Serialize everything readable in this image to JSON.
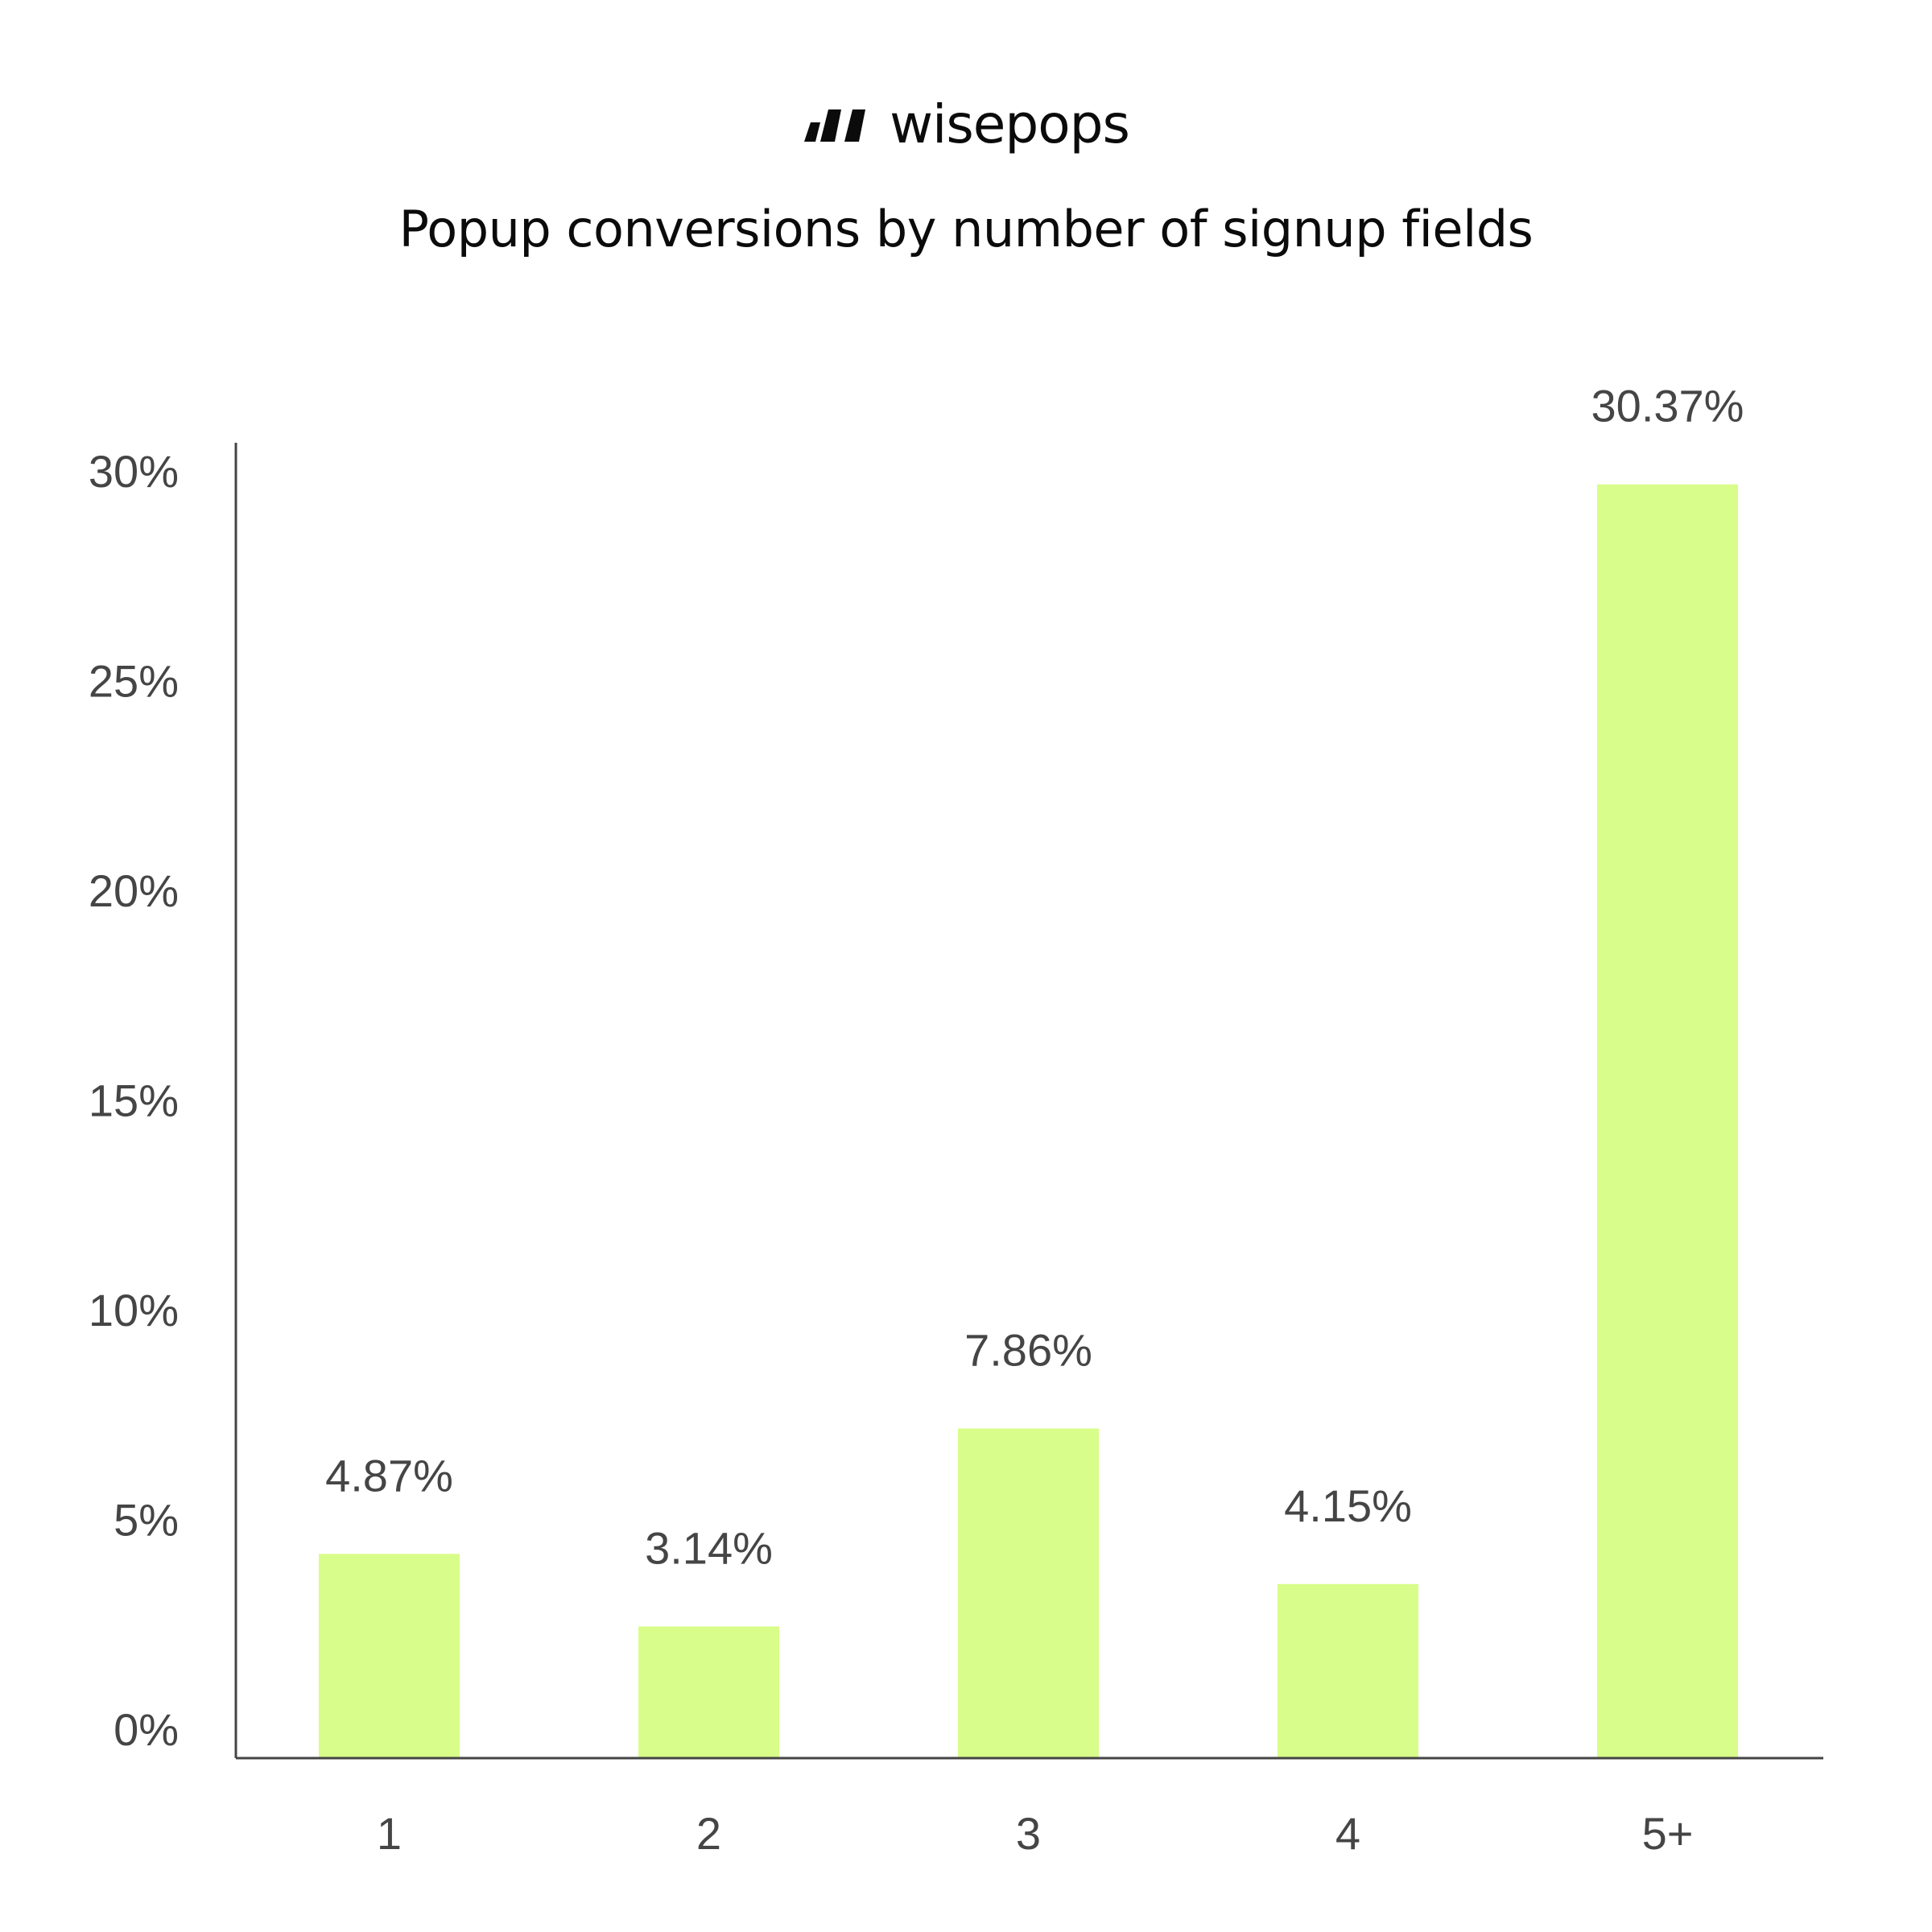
{
  "brand": {
    "name": "wisepops",
    "logo_icon": "wisepops-logo-icon",
    "color": "#0b0b0b"
  },
  "chart_data": {
    "type": "bar",
    "title": "Popup conversions by number of signup fields",
    "xlabel": "",
    "ylabel": "",
    "categories": [
      "1",
      "2",
      "3",
      "4",
      "5+"
    ],
    "values": [
      4.87,
      3.14,
      7.86,
      4.15,
      30.37
    ],
    "data_labels": [
      "4.87%",
      "3.14%",
      "7.86%",
      "4.15%",
      "30.37%"
    ],
    "y_ticks": [
      0,
      5,
      10,
      15,
      20,
      25,
      30
    ],
    "y_tick_labels": [
      "0%",
      "5%",
      "10%",
      "15%",
      "20%",
      "25%",
      "30%"
    ],
    "ylim": [
      0,
      31.5
    ],
    "grid": false,
    "legend": "none",
    "bar_color": "#d9fd8a",
    "axis_color": "#454545",
    "text_color": "#454545"
  }
}
